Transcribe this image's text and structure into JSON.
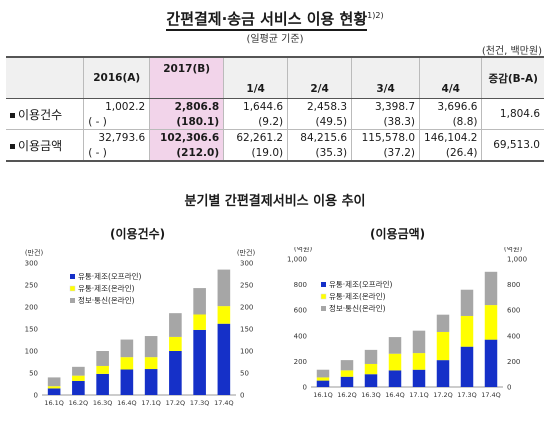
{
  "header": {
    "title": "간편결제·송금 서비스 이용 현황",
    "title_sup": "1)2)",
    "subtitle": "(일평균 기준)",
    "unit": "(천건, 백만원)"
  },
  "summary_table": {
    "col_2016": "2016(A)",
    "col_2017": "2017(B)",
    "col_change": "증감(B-A)",
    "quarters": [
      "1/4",
      "2/4",
      "3/4",
      "4/4"
    ],
    "rows": [
      {
        "label": "이용건수",
        "v2016": "1,002.2",
        "v2016_sub": "( - )",
        "v2017": "2,806.8",
        "v2017_sub": "(180.1)",
        "q": [
          "1,644.6",
          "2,458.3",
          "3,398.7",
          "3,696.6"
        ],
        "q_sub": [
          "(9.2)",
          "(49.5)",
          "(38.3)",
          "(8.8)"
        ],
        "change": "1,804.6"
      },
      {
        "label": "이용금액",
        "v2016": "32,793.6",
        "v2016_sub": "( - )",
        "v2017": "102,306.6",
        "v2017_sub": "(212.0)",
        "q": [
          "62,261.2",
          "84,215.6",
          "115,578.0",
          "146,104.2"
        ],
        "q_sub": [
          "(19.0)",
          "(35.3)",
          "(37.2)",
          "(26.4)"
        ],
        "change": "69,513.0"
      }
    ]
  },
  "section_title": "분기별 간편결제서비스 이용 추이",
  "chart_data": [
    {
      "type": "bar",
      "stacked": true,
      "title": "(이용건수)",
      "left_unit": "(만건)",
      "right_unit": "(만건)",
      "ylim": [
        0,
        300
      ],
      "yticks": [
        0,
        50,
        100,
        150,
        200,
        250,
        300
      ],
      "ytick_labels": [
        "0",
        "50",
        "100",
        "150",
        "200",
        "250",
        "300"
      ],
      "categories": [
        "16.1Q",
        "16.2Q",
        "16.3Q",
        "16.4Q",
        "17.1Q",
        "17.2Q",
        "17.3Q",
        "17.4Q"
      ],
      "legend_position": "top-left",
      "grid": false,
      "series": [
        {
          "name": "유통·제조(오프라인)",
          "color": "#1530c8",
          "values": [
            15,
            32,
            48,
            58,
            59,
            100,
            148,
            162
          ]
        },
        {
          "name": "유통·제조(온라인)",
          "color": "#ffff00",
          "values": [
            5,
            12,
            18,
            28,
            27,
            32,
            35,
            40
          ]
        },
        {
          "name": "정보·통신(온라인)",
          "color": "#a6a6a6",
          "values": [
            20,
            20,
            34,
            40,
            48,
            54,
            60,
            83
          ]
        }
      ]
    },
    {
      "type": "bar",
      "stacked": true,
      "title": "(이용금액)",
      "left_unit": "(억원)",
      "right_unit": "(억원)",
      "ylim": [
        0,
        1000
      ],
      "yticks": [
        0,
        200,
        400,
        600,
        800,
        1000
      ],
      "ytick_labels": [
        "0",
        "200",
        "400",
        "600",
        "800",
        "1,000"
      ],
      "categories": [
        "16.1Q",
        "16.2Q",
        "16.3Q",
        "16.4Q",
        "17.1Q",
        "17.2Q",
        "17.3Q",
        "17.4Q"
      ],
      "legend_position": "top-left",
      "grid": false,
      "series": [
        {
          "name": "유통·제조(오프라인)",
          "color": "#1530c8",
          "values": [
            50,
            80,
            100,
            130,
            135,
            210,
            315,
            370
          ]
        },
        {
          "name": "유통·제조(온라인)",
          "color": "#ffff00",
          "values": [
            25,
            50,
            80,
            130,
            130,
            220,
            240,
            270
          ]
        },
        {
          "name": "정보·통신(온라인)",
          "color": "#a6a6a6",
          "values": [
            60,
            80,
            110,
            130,
            175,
            135,
            205,
            260
          ]
        }
      ]
    }
  ]
}
